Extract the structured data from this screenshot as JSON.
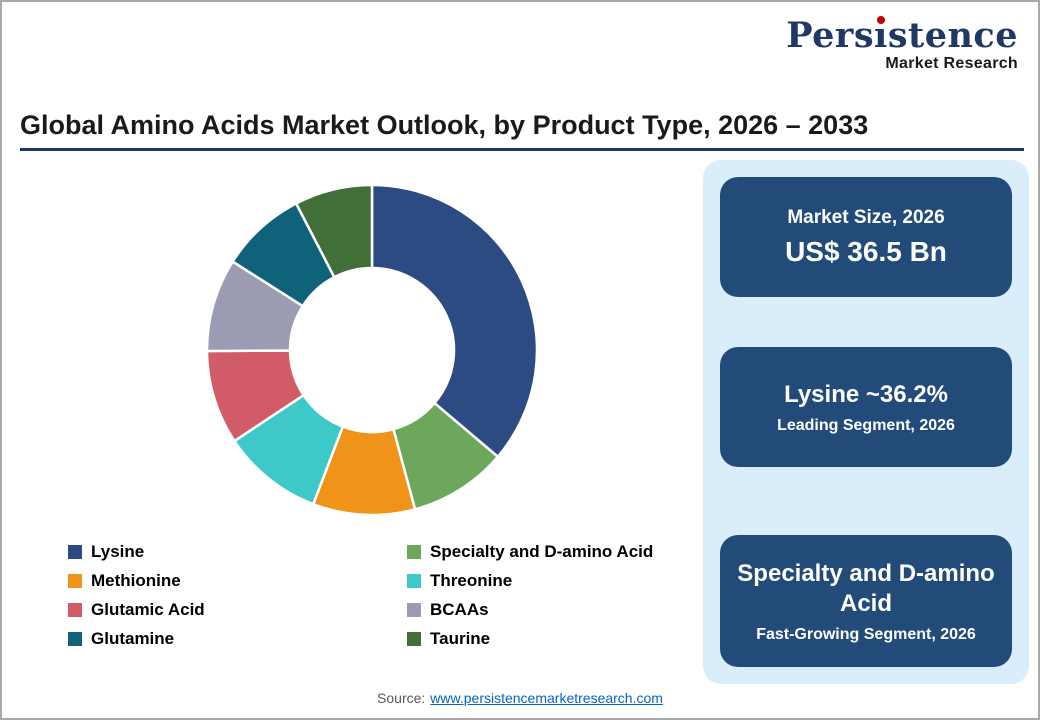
{
  "logo": {
    "brand": "Persistence",
    "sub": "Market Research",
    "brand_color": "#1f3864",
    "dot_color": "#c00000"
  },
  "chart_data": {
    "type": "pie",
    "subtype": "donut",
    "title": "Global Amino Acids Market Outlook, by Product Type, 2026 – 2033",
    "unit": "percent share",
    "start_angle_deg": 0,
    "direction": "clockwise",
    "legend_position": "bottom-left",
    "segments": [
      {
        "label": "Lysine",
        "value": 36.2,
        "color": "#2c4b82"
      },
      {
        "label": "Specialty and D-amino Acid",
        "value": 9.6,
        "color": "#6ca75c"
      },
      {
        "label": "Methionine",
        "value": 10.0,
        "color": "#f09319"
      },
      {
        "label": "Threonine",
        "value": 9.9,
        "color": "#3fc8c8"
      },
      {
        "label": "Glutamic Acid",
        "value": 9.2,
        "color": "#d15b67"
      },
      {
        "label": "BCAAs",
        "value": 9.1,
        "color": "#9b9cb3"
      },
      {
        "label": "Glutamine",
        "value": 8.4,
        "color": "#10617a"
      },
      {
        "label": "Taurine",
        "value": 7.6,
        "color": "#426e38"
      }
    ]
  },
  "highlights": [
    {
      "top": "Market Size, 2026",
      "bottom": "US$ 36.5 Bn"
    },
    {
      "top": "Lysine ~36.2%",
      "bottom": "Leading Segment, 2026"
    },
    {
      "top": "Specialty and D-amino Acid",
      "bottom": "Fast-Growing Segment, 2026"
    }
  ],
  "source": {
    "label": "Source:",
    "link": "www.persistencemarketresearch.com"
  },
  "colors": {
    "panel_bg": "#d9edfb",
    "card_bg": "#234b7a",
    "title_rule": "#1f3864",
    "link": "#0563c1",
    "frame_border": "#a8a8a8"
  }
}
